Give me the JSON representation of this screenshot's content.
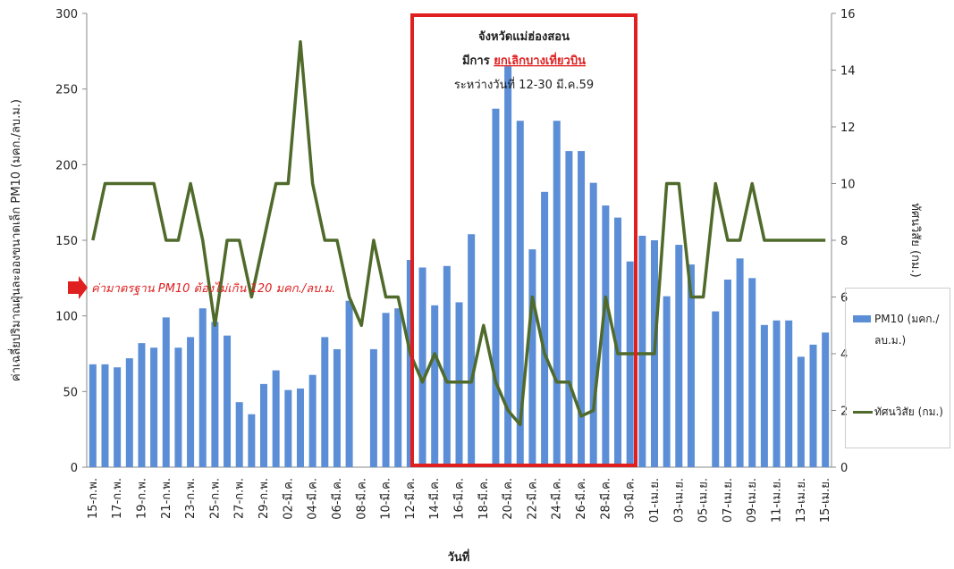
{
  "chart_data": {
    "type": "bar_line",
    "y_label": "ค่าเฉลี่ยปริมาณฝุ่นละอองขนาดเล็ก PM10 (มคก./ลบ.ม.)",
    "y2_label": "ทัศนวิสัย (กม.)",
    "x_label": "วันที่",
    "annotation_box": {
      "line1": "จังหวัดแม่ฮ่องสอน",
      "line2_prefix": "มีการ",
      "line2_highlight": "ยกเลิกบางเที่ยวบิน",
      "line3": "ระหว่างวันที่ 12-30 มี.ค.59"
    },
    "standard_note": "ค่ามาตรฐาน PM10 ต้องไม่เกิน 120 มคก./ลบ.ม.",
    "categories": [
      "15-ก.พ.",
      null,
      "17-ก.พ.",
      null,
      "19-ก.พ.",
      null,
      "21-ก.พ.",
      null,
      "23-ก.พ.",
      null,
      "25-ก.พ.",
      null,
      "27-ก.พ.",
      null,
      "29-ก.พ.",
      null,
      "02-มี.ค.",
      null,
      "04-มี.ค.",
      null,
      "06-มี.ค.",
      null,
      "08-มี.ค.",
      null,
      "10-มี.ค.",
      null,
      "12-มี.ค.",
      null,
      "14-มี.ค.",
      null,
      "16-มี.ค.",
      null,
      "18-มี.ค.",
      null,
      "20-มี.ค.",
      null,
      "22-มี.ค.",
      null,
      "24-มี.ค.",
      null,
      "26-มี.ค.",
      null,
      "28-มี.ค.",
      null,
      "30-มี.ค.",
      null,
      "01-เม.ย.",
      null,
      "03-เม.ย.",
      null,
      "05-เม.ย.",
      null,
      "07-เม.ย.",
      null,
      "09-เม.ย.",
      null,
      "11-เม.ย.",
      null,
      "13-เม.ย.",
      null,
      "15-เม.ย."
    ],
    "series": [
      {
        "name": "PM10 (มคก./ลบ.ม.)",
        "type": "bar",
        "color": "#5b8ed6",
        "values": [
          68,
          68,
          66,
          72,
          82,
          79,
          99,
          79,
          86,
          105,
          96,
          87,
          43,
          35,
          55,
          64,
          51,
          52,
          61,
          86,
          78,
          110,
          null,
          78,
          102,
          105,
          137,
          132,
          107,
          133,
          109,
          154,
          null,
          237,
          265,
          229,
          144,
          182,
          229,
          209,
          209,
          188,
          173,
          165,
          136,
          153,
          150,
          113,
          147,
          134,
          null,
          103,
          124,
          138,
          125,
          94,
          97,
          97,
          73,
          81,
          89
        ]
      },
      {
        "name": "ทัศนวิสัย (กม.)",
        "type": "line",
        "axis": "y2",
        "color": "#4f6a2a",
        "values": [
          8,
          10,
          10,
          10,
          10,
          10,
          8,
          8,
          10,
          8,
          5,
          8,
          8,
          6,
          8,
          10,
          10,
          15,
          10,
          8,
          8,
          6,
          5,
          8,
          6,
          6,
          4,
          3,
          4,
          3,
          3,
          3,
          5,
          3,
          2,
          1.5,
          6,
          4,
          3,
          3,
          1.8,
          2,
          6,
          4,
          4,
          4,
          4,
          10,
          10,
          6,
          6,
          10,
          8,
          8,
          10,
          8,
          8,
          8,
          8,
          8,
          8
        ]
      }
    ],
    "ylim": [
      0,
      300
    ],
    "yticks": [
      0,
      50,
      100,
      150,
      200,
      250,
      300
    ],
    "y2lim": [
      0,
      16
    ],
    "y2ticks": [
      0,
      2,
      4,
      6,
      8,
      10,
      12,
      14,
      16
    ]
  }
}
